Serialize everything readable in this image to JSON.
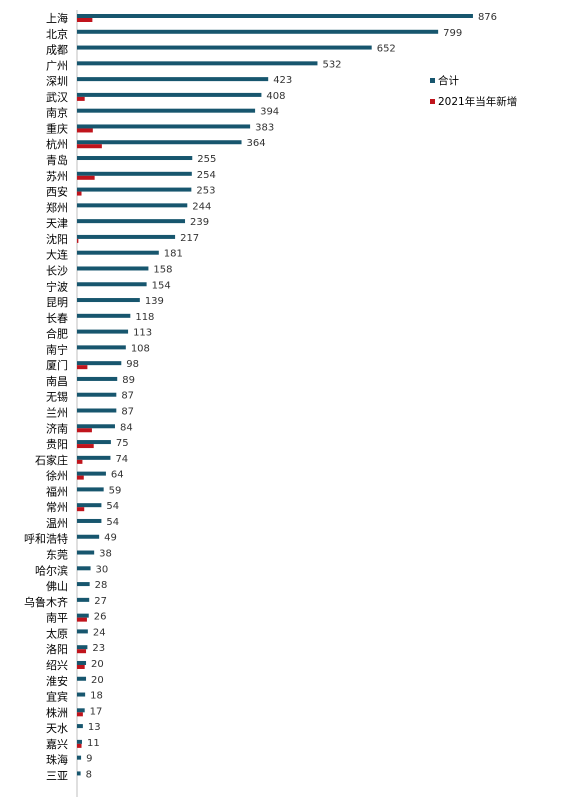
{
  "chart_data": {
    "type": "bar",
    "orientation": "horizontal",
    "categories": [
      "上海",
      "北京",
      "成都",
      "广州",
      "深圳",
      "武汉",
      "南京",
      "重庆",
      "杭州",
      "青岛",
      "苏州",
      "西安",
      "郑州",
      "天津",
      "沈阳",
      "大连",
      "长沙",
      "宁波",
      "昆明",
      "长春",
      "合肥",
      "南宁",
      "厦门",
      "南昌",
      "无锡",
      "兰州",
      "济南",
      "贵阳",
      "石家庄",
      "徐州",
      "福州",
      "常州",
      "温州",
      "呼和浩特",
      "东莞",
      "哈尔滨",
      "佛山",
      "乌鲁木齐",
      "南平",
      "太原",
      "洛阳",
      "绍兴",
      "淮安",
      "宜宾",
      "株洲",
      "天水",
      "嘉兴",
      "珠海",
      "三亚"
    ],
    "series": [
      {
        "name": "合计",
        "color": "#17566e",
        "values": [
          876,
          799,
          652,
          532,
          423,
          408,
          394,
          383,
          364,
          255,
          254,
          253,
          244,
          239,
          217,
          181,
          158,
          154,
          139,
          118,
          113,
          108,
          98,
          89,
          87,
          87,
          84,
          75,
          74,
          64,
          59,
          54,
          54,
          49,
          38,
          30,
          28,
          27,
          26,
          24,
          23,
          20,
          20,
          18,
          17,
          13,
          11,
          9,
          8
        ]
      },
      {
        "name": "2021年当年新增",
        "color": "#c0141c",
        "values": [
          34,
          0,
          0,
          0,
          0,
          17,
          0,
          35,
          55,
          0,
          39,
          10,
          0,
          0,
          3,
          0,
          0,
          0,
          0,
          0,
          0,
          0,
          23,
          0,
          0,
          0,
          33,
          37,
          12,
          15,
          0,
          16,
          0,
          0,
          0,
          0,
          0,
          0,
          22,
          0,
          20,
          17,
          0,
          0,
          13,
          0,
          10,
          0,
          0
        ]
      }
    ],
    "legend_position": "right",
    "grid": false
  }
}
